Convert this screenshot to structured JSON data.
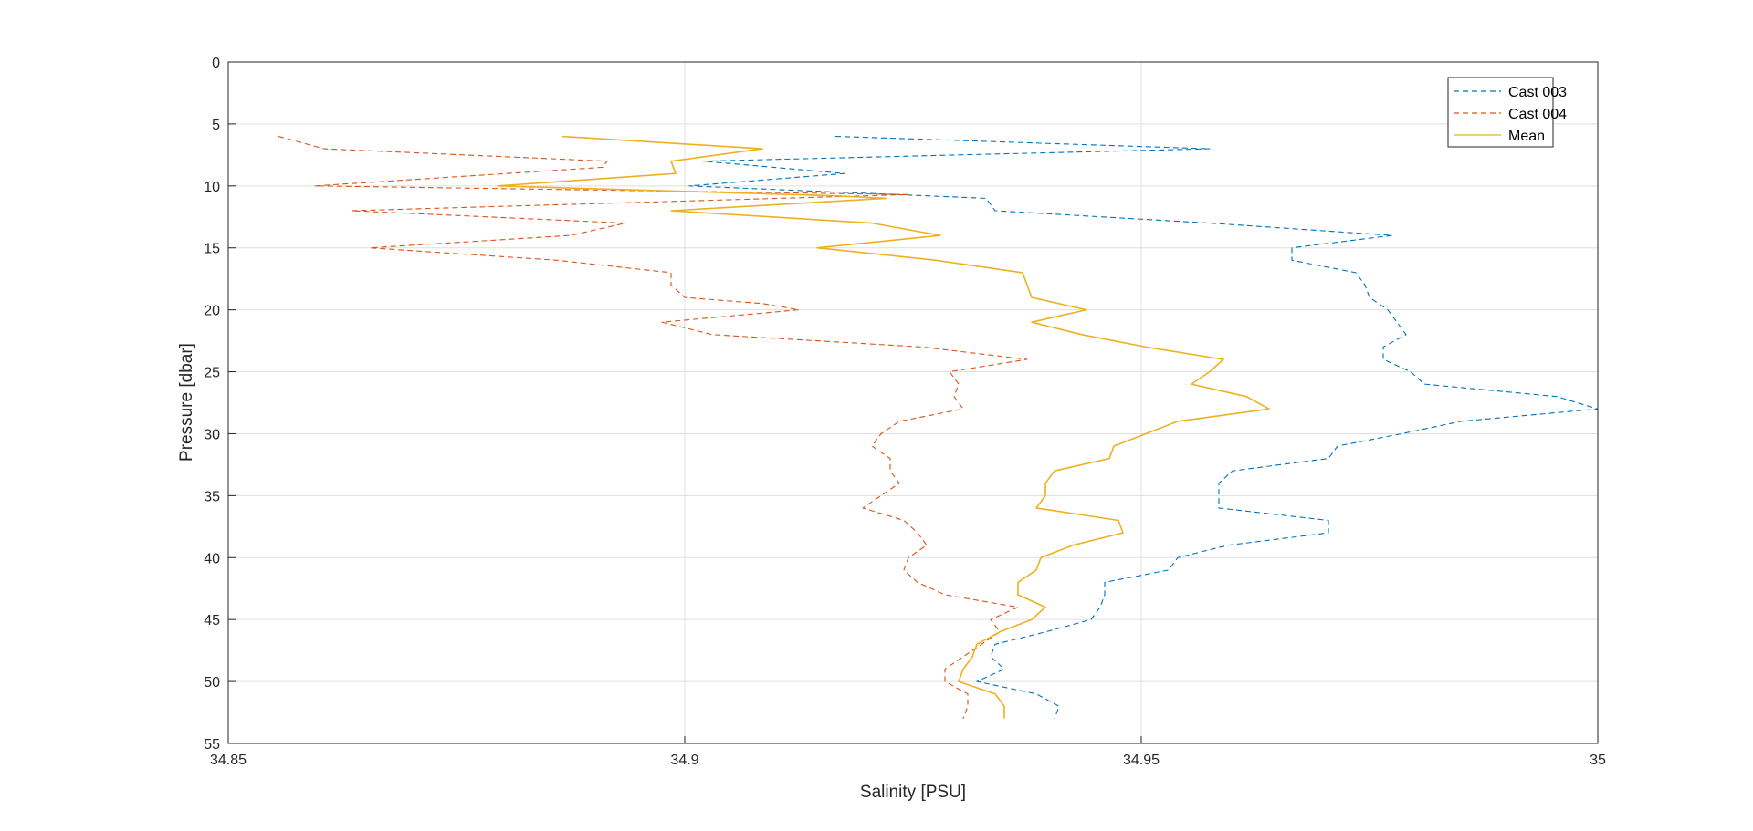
{
  "chart_data": {
    "type": "line",
    "xlabel": "Salinity [PSU]",
    "ylabel": "Pressure [dbar]",
    "xlim": [
      34.85,
      35
    ],
    "ylim": [
      0,
      55
    ],
    "y_reversed": true,
    "grid": true,
    "x_ticks": [
      34.85,
      34.9,
      34.95,
      35
    ],
    "x_tick_labels": [
      "34.85",
      "34.9",
      "34.95",
      "35"
    ],
    "y_ticks": [
      0,
      5,
      10,
      15,
      20,
      25,
      30,
      35,
      40,
      45,
      50,
      55
    ],
    "y_tick_labels": [
      "0",
      "5",
      "10",
      "15",
      "20",
      "25",
      "30",
      "35",
      "40",
      "45",
      "50",
      "55"
    ],
    "legend_position": "top-right",
    "series": [
      {
        "name": "Cast 003",
        "color": "#0072BD",
        "style": "dashed",
        "points": [
          [
            34.9165,
            6
          ],
          [
            34.9575,
            7
          ],
          [
            34.902,
            8
          ],
          [
            34.9175,
            9
          ],
          [
            34.9005,
            10
          ],
          [
            34.933,
            11
          ],
          [
            34.934,
            12
          ],
          [
            34.9575,
            13
          ],
          [
            34.9775,
            14
          ],
          [
            34.9665,
            15
          ],
          [
            34.9665,
            16
          ],
          [
            34.9735,
            17
          ],
          [
            34.9745,
            18
          ],
          [
            34.975,
            19
          ],
          [
            34.977,
            20
          ],
          [
            34.978,
            21
          ],
          [
            34.979,
            22
          ],
          [
            34.9765,
            23
          ],
          [
            34.9765,
            24
          ],
          [
            34.9795,
            25
          ],
          [
            34.981,
            26
          ],
          [
            34.9955,
            27
          ],
          [
            35,
            28
          ],
          [
            34.985,
            29
          ],
          [
            34.9785,
            30
          ],
          [
            34.9715,
            31
          ],
          [
            34.9705,
            32
          ],
          [
            34.96,
            33
          ],
          [
            34.9585,
            34
          ],
          [
            34.9585,
            35
          ],
          [
            34.9585,
            36
          ],
          [
            34.9705,
            37
          ],
          [
            34.9705,
            38
          ],
          [
            34.9595,
            39
          ],
          [
            34.954,
            40
          ],
          [
            34.953,
            41
          ],
          [
            34.946,
            42
          ],
          [
            34.946,
            43
          ],
          [
            34.9455,
            44
          ],
          [
            34.9445,
            45
          ],
          [
            34.9395,
            46
          ],
          [
            34.934,
            47
          ],
          [
            34.9335,
            48
          ],
          [
            34.935,
            49
          ],
          [
            34.932,
            50
          ],
          [
            34.9385,
            51
          ],
          [
            34.941,
            52
          ],
          [
            34.9405,
            53
          ]
        ]
      },
      {
        "name": "Cast 004",
        "color": "#D95319",
        "style": "dashed",
        "points": [
          [
            34.8555,
            6
          ],
          [
            34.8605,
            7
          ],
          [
            34.8915,
            8
          ],
          [
            34.891,
            8.5
          ],
          [
            34.8595,
            10
          ],
          [
            34.9245,
            10.7
          ],
          [
            34.8635,
            12
          ],
          [
            34.8935,
            13
          ],
          [
            34.8875,
            14
          ],
          [
            34.8655,
            15
          ],
          [
            34.886,
            16
          ],
          [
            34.8985,
            17
          ],
          [
            34.8985,
            18
          ],
          [
            34.9,
            19
          ],
          [
            34.9085,
            19.5
          ],
          [
            34.9125,
            20
          ],
          [
            34.8975,
            21
          ],
          [
            34.903,
            22
          ],
          [
            34.926,
            23
          ],
          [
            34.9375,
            24
          ],
          [
            34.929,
            25
          ],
          [
            34.93,
            26
          ],
          [
            34.9295,
            27
          ],
          [
            34.9305,
            28
          ],
          [
            34.9235,
            29
          ],
          [
            34.9215,
            30
          ],
          [
            34.9205,
            31
          ],
          [
            34.9225,
            32
          ],
          [
            34.9225,
            33
          ],
          [
            34.9235,
            34
          ],
          [
            34.9215,
            35
          ],
          [
            34.9195,
            36
          ],
          [
            34.924,
            37
          ],
          [
            34.9255,
            38
          ],
          [
            34.9265,
            39
          ],
          [
            34.9245,
            40
          ],
          [
            34.924,
            41
          ],
          [
            34.9255,
            42
          ],
          [
            34.9285,
            43
          ],
          [
            34.9365,
            44
          ],
          [
            34.9335,
            45
          ],
          [
            34.9345,
            46
          ],
          [
            34.9325,
            47
          ],
          [
            34.9305,
            48
          ],
          [
            34.9285,
            49
          ],
          [
            34.9285,
            50
          ],
          [
            34.931,
            51
          ],
          [
            34.931,
            52
          ],
          [
            34.9305,
            53
          ]
        ]
      },
      {
        "name": "Mean",
        "color": "#EDB120",
        "style": "solid",
        "points": [
          [
            34.8865,
            6
          ],
          [
            34.9085,
            7
          ],
          [
            34.8985,
            8
          ],
          [
            34.899,
            9
          ],
          [
            34.8795,
            10
          ],
          [
            34.9165,
            10.8
          ],
          [
            34.922,
            11
          ],
          [
            34.8985,
            12
          ],
          [
            34.9205,
            13
          ],
          [
            34.928,
            14
          ],
          [
            34.9145,
            15
          ],
          [
            34.9275,
            16
          ],
          [
            34.937,
            17
          ],
          [
            34.9375,
            18
          ],
          [
            34.938,
            19
          ],
          [
            34.944,
            20
          ],
          [
            34.938,
            21
          ],
          [
            34.9435,
            22
          ],
          [
            34.9505,
            23
          ],
          [
            34.959,
            24
          ],
          [
            34.9575,
            25
          ],
          [
            34.9555,
            26
          ],
          [
            34.9615,
            27
          ],
          [
            34.964,
            28
          ],
          [
            34.954,
            29
          ],
          [
            34.9505,
            30
          ],
          [
            34.947,
            31
          ],
          [
            34.9465,
            32
          ],
          [
            34.9405,
            33
          ],
          [
            34.9395,
            34
          ],
          [
            34.9395,
            35
          ],
          [
            34.9385,
            36
          ],
          [
            34.9475,
            37
          ],
          [
            34.948,
            38
          ],
          [
            34.9425,
            39
          ],
          [
            34.939,
            40
          ],
          [
            34.9385,
            41
          ],
          [
            34.9365,
            42
          ],
          [
            34.9365,
            43
          ],
          [
            34.9395,
            44
          ],
          [
            34.938,
            45
          ],
          [
            34.9345,
            46
          ],
          [
            34.932,
            47
          ],
          [
            34.9315,
            48
          ],
          [
            34.9305,
            49
          ],
          [
            34.93,
            50
          ],
          [
            34.934,
            51
          ],
          [
            34.935,
            52
          ],
          [
            34.935,
            53
          ]
        ]
      }
    ]
  }
}
